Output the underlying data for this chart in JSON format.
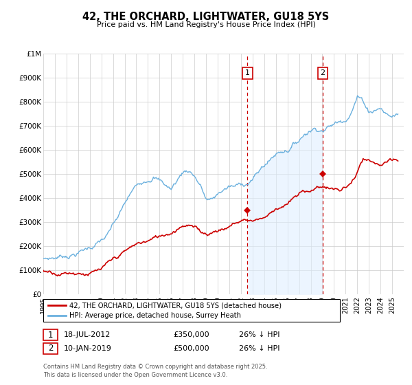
{
  "title": "42, THE ORCHARD, LIGHTWATER, GU18 5YS",
  "subtitle": "Price paid vs. HM Land Registry's House Price Index (HPI)",
  "ylim": [
    0,
    1000000
  ],
  "yticks": [
    0,
    100000,
    200000,
    300000,
    400000,
    500000,
    600000,
    700000,
    800000,
    900000,
    1000000
  ],
  "ytick_labels": [
    "£0",
    "£100K",
    "£200K",
    "£300K",
    "£400K",
    "£500K",
    "£600K",
    "£700K",
    "£800K",
    "£900K",
    "£1M"
  ],
  "hpi_color": "#6ab0de",
  "price_color": "#cc0000",
  "shade_color": "#ddeeff",
  "background_color": "#ffffff",
  "grid_color": "#cccccc",
  "purchase1_x": 2012.55,
  "purchase1_y": 350000,
  "purchase1_label": "1",
  "purchase2_x": 2019.03,
  "purchase2_y": 500000,
  "purchase2_label": "2",
  "vline_color": "#cc0000",
  "legend_line1": "42, THE ORCHARD, LIGHTWATER, GU18 5YS (detached house)",
  "legend_line2": "HPI: Average price, detached house, Surrey Heath",
  "note1_num": "1",
  "note1_date": "18-JUL-2012",
  "note1_price": "£350,000",
  "note1_detail": "26% ↓ HPI",
  "note2_num": "2",
  "note2_date": "10-JAN-2019",
  "note2_price": "£500,000",
  "note2_detail": "26% ↓ HPI",
  "footer": "Contains HM Land Registry data © Crown copyright and database right 2025.\nThis data is licensed under the Open Government Licence v3.0.",
  "xmin": 1995,
  "xmax": 2026
}
